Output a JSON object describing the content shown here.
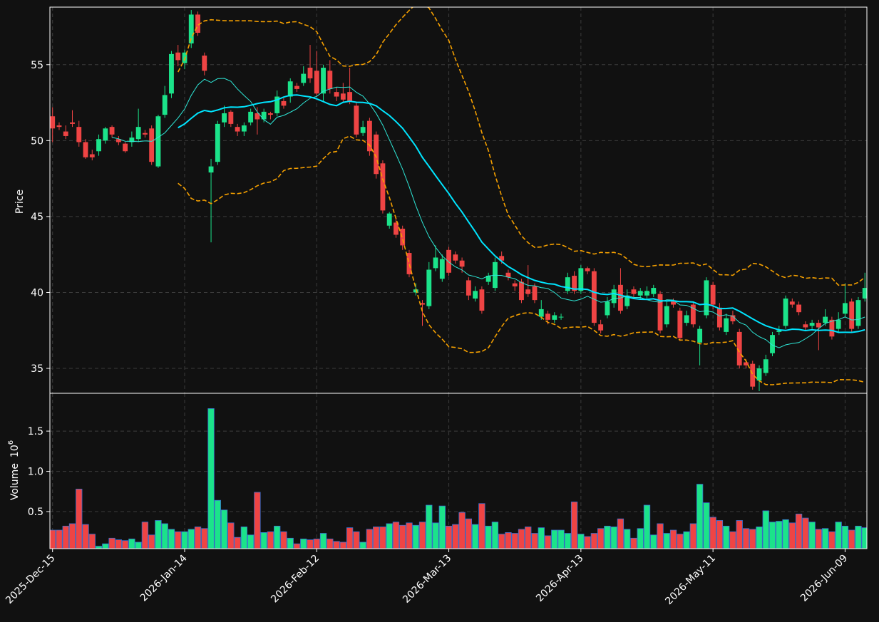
{
  "chart_data": {
    "type": "candlestick",
    "ylabel": "Price",
    "ylim": [
      33.36,
      58.79
    ],
    "yticks": [
      35,
      40,
      45,
      50,
      55
    ],
    "xlim": [
      -0.4,
      123.3
    ],
    "xticks": [
      {
        "value": 0,
        "label": "2025-Dec-15"
      },
      {
        "value": 20,
        "label": "2026-Jan-14"
      },
      {
        "value": 40,
        "label": "2026-Feb-12"
      },
      {
        "value": 60,
        "label": "2026-Mar-13"
      },
      {
        "value": 80,
        "label": "2026-Apr-13"
      },
      {
        "value": 100,
        "label": "2026-May-11"
      },
      {
        "value": 120,
        "label": "2026-Jun-09"
      }
    ],
    "grid": true,
    "up_color": "#1be38a",
    "down_color": "#ef4444",
    "open": [
      51.6,
      51.0,
      50.6,
      51.2,
      50.9,
      49.9,
      49.1,
      49.3,
      50.0,
      50.9,
      50.1,
      49.8,
      49.9,
      50.1,
      50.5,
      50.8,
      48.3,
      51.7,
      53.1,
      55.8,
      55.1,
      56.4,
      58.3,
      55.6,
      47.9,
      48.6,
      51.2,
      51.9,
      50.9,
      50.6,
      51.2,
      51.8,
      51.4,
      51.8,
      51.8,
      52.6,
      52.9,
      53.6,
      53.8,
      54.8,
      54.6,
      53.1,
      54.6,
      53.2,
      53.1,
      53.2,
      52.3,
      50.5,
      51.3,
      50.4,
      48.5,
      44.4,
      44.6,
      44.2,
      42.6,
      40.0,
      39.3,
      39.1,
      41.6,
      40.9,
      42.8,
      42.5,
      42.1,
      40.8,
      39.6,
      40.2,
      40.7,
      40.3,
      42.4,
      41.3,
      40.6,
      40.7,
      40.2,
      40.4,
      38.4,
      38.6,
      38.2,
      38.4,
      40.1,
      41.1,
      40.1,
      41.6,
      41.4,
      37.9,
      38.5,
      39.3,
      40.5,
      39.1,
      40.2,
      39.8,
      39.8,
      39.9,
      39.9,
      37.9,
      39.4,
      38.8,
      38.0,
      39.2,
      36.7,
      38.5,
      40.5,
      39.0,
      37.4,
      38.5,
      37.4,
      35.4,
      35.3,
      34.2,
      34.7,
      36.0,
      37.4,
      37.8,
      39.4,
      39.2,
      37.9,
      37.8,
      38.0,
      38.0,
      38.2,
      37.6,
      38.6,
      39.4,
      37.8,
      39.6
    ],
    "high": [
      52.2,
      51.2,
      51.0,
      52.0,
      51.3,
      50.1,
      49.4,
      50.4,
      50.9,
      51.0,
      50.3,
      49.9,
      50.6,
      52.1,
      50.7,
      51.0,
      51.7,
      53.6,
      55.9,
      56.3,
      56.0,
      58.6,
      58.5,
      55.8,
      48.8,
      51.3,
      52.3,
      52.0,
      51.1,
      51.2,
      52.1,
      52.2,
      52.1,
      51.9,
      53.3,
      52.8,
      54.1,
      53.8,
      54.9,
      56.3,
      55.9,
      55.0,
      55.3,
      53.5,
      53.8,
      54.8,
      52.5,
      51.3,
      51.5,
      50.6,
      48.7,
      45.3,
      44.9,
      44.4,
      42.8,
      40.6,
      39.5,
      42.0,
      43.1,
      42.5,
      43.0,
      42.7,
      42.3,
      41.0,
      40.4,
      40.4,
      41.3,
      42.3,
      42.7,
      41.5,
      40.8,
      40.9,
      41.8,
      40.6,
      39.5,
      38.8,
      38.7,
      38.6,
      41.3,
      41.4,
      41.8,
      41.7,
      41.6,
      38.2,
      39.7,
      40.5,
      41.6,
      40.2,
      40.4,
      40.3,
      40.4,
      40.5,
      40.1,
      39.4,
      39.6,
      39.0,
      38.8,
      39.4,
      37.8,
      41.0,
      40.7,
      39.3,
      38.6,
      38.8,
      37.6,
      35.6,
      35.5,
      35.2,
      35.9,
      37.4,
      37.8,
      39.8,
      39.6,
      39.4,
      38.1,
      38.2,
      38.2,
      38.9,
      38.4,
      38.7,
      40.6,
      39.6,
      39.7,
      41.3
    ],
    "low": [
      49.9,
      50.7,
      50.1,
      50.9,
      49.6,
      48.8,
      48.7,
      49.0,
      49.8,
      50.2,
      49.7,
      49.2,
      49.6,
      49.9,
      50.2,
      48.4,
      48.2,
      51.5,
      52.8,
      54.9,
      54.7,
      56.1,
      56.9,
      54.3,
      43.3,
      48.4,
      50.9,
      50.9,
      50.3,
      50.3,
      51.0,
      50.4,
      51.2,
      51.4,
      51.6,
      52.1,
      52.5,
      53.2,
      53.6,
      53.8,
      52.9,
      52.6,
      53.1,
      52.6,
      52.5,
      52.4,
      50.2,
      50.3,
      49.0,
      47.5,
      45.2,
      44.2,
      43.6,
      42.8,
      41.0,
      39.8,
      37.8,
      38.9,
      41.4,
      40.7,
      41.1,
      41.9,
      41.3,
      39.5,
      39.4,
      38.6,
      40.5,
      40.1,
      41.9,
      40.8,
      40.1,
      39.3,
      39.7,
      39.3,
      38.2,
      37.9,
      38.0,
      38.2,
      39.9,
      39.9,
      39.9,
      41.2,
      37.8,
      37.3,
      38.3,
      39.0,
      38.6,
      38.9,
      39.7,
      39.6,
      39.6,
      39.7,
      37.3,
      37.7,
      39.0,
      36.8,
      37.8,
      37.7,
      35.2,
      38.3,
      38.9,
      37.5,
      37.2,
      37.9,
      35.0,
      35.0,
      33.6,
      33.5,
      34.5,
      35.8,
      37.2,
      37.6,
      39.0,
      38.5,
      37.5,
      37.6,
      36.2,
      37.8,
      36.9,
      37.4,
      38.4,
      37.4,
      37.6,
      39.4
    ],
    "close": [
      50.8,
      50.9,
      50.3,
      51.1,
      49.9,
      48.9,
      48.9,
      50.1,
      50.8,
      50.4,
      49.9,
      49.3,
      50.2,
      50.9,
      50.4,
      48.6,
      51.6,
      53.0,
      55.7,
      55.3,
      55.8,
      58.3,
      57.1,
      54.6,
      48.3,
      51.1,
      51.8,
      51.1,
      50.6,
      51.0,
      51.9,
      51.4,
      51.9,
      51.7,
      52.9,
      52.3,
      53.9,
      53.4,
      54.4,
      54.1,
      53.1,
      54.8,
      53.4,
      52.9,
      52.7,
      52.6,
      50.4,
      50.9,
      49.3,
      47.8,
      45.4,
      45.2,
      43.8,
      43.1,
      41.2,
      40.2,
      39.2,
      41.5,
      42.3,
      42.2,
      41.3,
      42.1,
      41.7,
      39.8,
      40.1,
      38.8,
      41.1,
      42.0,
      42.1,
      41.0,
      40.4,
      39.5,
      39.9,
      39.5,
      38.9,
      38.2,
      38.5,
      38.4,
      41.0,
      40.1,
      41.6,
      41.4,
      38.0,
      37.5,
      39.4,
      40.2,
      38.8,
      39.8,
      39.9,
      40.1,
      40.1,
      40.3,
      37.5,
      39.1,
      39.2,
      37.0,
      38.5,
      37.9,
      37.6,
      40.8,
      39.2,
      37.7,
      38.3,
      38.1,
      35.2,
      35.2,
      33.8,
      35.0,
      35.6,
      37.2,
      37.5,
      39.6,
      39.2,
      38.7,
      37.7,
      38.0,
      37.7,
      38.4,
      37.1,
      38.2,
      39.3,
      37.6,
      39.5,
      40.3
    ],
    "overlays": [
      {
        "kind": "sma",
        "window": 10,
        "color": "#2ee6d6",
        "width": 1
      },
      {
        "kind": "sma",
        "window": 20,
        "color": "#00e5ff",
        "width": 2
      },
      {
        "kind": "bollinger",
        "window": 20,
        "k": 2,
        "color": "#f5a000",
        "width": 1.6
      }
    ],
    "volume": {
      "ylabel": "Volume",
      "offset_base": "10",
      "offset_exponent": "6",
      "ylim": [
        0.04,
        1.97
      ],
      "yticks": [
        0.5,
        {
          "value": 1.0,
          "label": "1.0"
        },
        1.5
      ],
      "edge_color": "#3a6fd0",
      "values": [
        0.27,
        0.27,
        0.32,
        0.35,
        0.78,
        0.34,
        0.22,
        0.07,
        0.1,
        0.17,
        0.15,
        0.14,
        0.16,
        0.12,
        0.37,
        0.21,
        0.39,
        0.35,
        0.28,
        0.25,
        0.25,
        0.28,
        0.31,
        0.29,
        1.78,
        0.64,
        0.52,
        0.36,
        0.18,
        0.31,
        0.21,
        0.74,
        0.24,
        0.25,
        0.32,
        0.25,
        0.17,
        0.1,
        0.16,
        0.15,
        0.16,
        0.23,
        0.16,
        0.13,
        0.12,
        0.3,
        0.25,
        0.12,
        0.28,
        0.31,
        0.31,
        0.35,
        0.37,
        0.33,
        0.36,
        0.33,
        0.37,
        0.58,
        0.36,
        0.57,
        0.32,
        0.34,
        0.49,
        0.41,
        0.34,
        0.6,
        0.32,
        0.37,
        0.22,
        0.24,
        0.23,
        0.28,
        0.31,
        0.23,
        0.3,
        0.2,
        0.27,
        0.27,
        0.23,
        0.62,
        0.22,
        0.19,
        0.23,
        0.29,
        0.32,
        0.31,
        0.41,
        0.28,
        0.17,
        0.29,
        0.58,
        0.21,
        0.35,
        0.23,
        0.27,
        0.22,
        0.25,
        0.35,
        0.84,
        0.61,
        0.43,
        0.39,
        0.32,
        0.25,
        0.39,
        0.29,
        0.28,
        0.31,
        0.51,
        0.37,
        0.38,
        0.4,
        0.36,
        0.47,
        0.42,
        0.37,
        0.28,
        0.29,
        0.25,
        0.37,
        0.32,
        0.27,
        0.32,
        0.3
      ]
    }
  }
}
